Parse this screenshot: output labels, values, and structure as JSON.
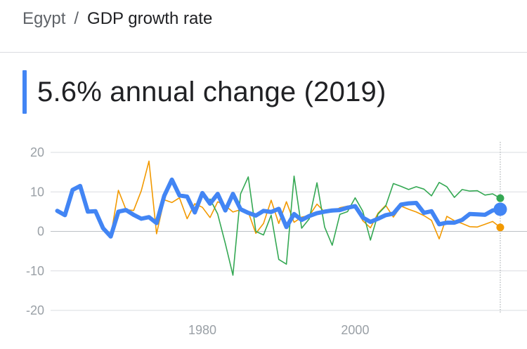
{
  "breadcrumb": {
    "parent": "Egypt",
    "separator": "/",
    "current": "GDP growth rate"
  },
  "headline": {
    "value": "5.6% annual change (2019)"
  },
  "colors": {
    "accent": "#4285f4",
    "series_main": "#4285f4",
    "series_orange": "#f29900",
    "series_green": "#34a853",
    "grid": "#dadce0",
    "axis_text": "#9aa0a6"
  },
  "chart_data": {
    "type": "line",
    "title": "",
    "xlabel": "",
    "ylabel": "",
    "xlim": [
      1953.5,
      2022.5
    ],
    "ylim": [
      -20,
      20
    ],
    "yticks": [
      "20",
      "10",
      "0",
      "-10",
      "-20"
    ],
    "ytick_values": [
      20,
      10,
      0,
      -10,
      -20
    ],
    "xticks": [
      "1980",
      "2000"
    ],
    "xtick_values": [
      1980,
      2000
    ],
    "grid": true,
    "legend": "none",
    "cursor_year": 2019,
    "series": [
      {
        "color": "#4285f4",
        "emphasis": true,
        "x": [
          1961,
          1962,
          1963,
          1964,
          1965,
          1966,
          1967,
          1968,
          1969,
          1970,
          1971,
          1972,
          1973,
          1974,
          1975,
          1976,
          1977,
          1978,
          1979,
          1980,
          1981,
          1982,
          1983,
          1984,
          1985,
          1986,
          1987,
          1988,
          1989,
          1990,
          1991,
          1992,
          1993,
          1994,
          1995,
          1996,
          1997,
          1998,
          1999,
          2000,
          2001,
          2002,
          2003,
          2004,
          2005,
          2006,
          2007,
          2008,
          2009,
          2010,
          2011,
          2012,
          2013,
          2014,
          2015,
          2016,
          2017,
          2018,
          2019
        ],
        "values": [
          5.2,
          4.1,
          10.5,
          11.5,
          5.0,
          5.1,
          0.8,
          -1.3,
          5.0,
          5.4,
          4.2,
          3.2,
          3.6,
          2.1,
          9.0,
          13.1,
          9.1,
          8.8,
          4.8,
          9.7,
          7.0,
          9.5,
          5.3,
          9.5,
          5.6,
          4.7,
          4.0,
          5.2,
          4.9,
          5.7,
          1.1,
          4.4,
          2.9,
          3.9,
          4.6,
          5.0,
          5.3,
          5.4,
          6.0,
          6.4,
          3.5,
          2.4,
          3.2,
          4.1,
          4.5,
          6.8,
          7.1,
          7.2,
          4.7,
          5.1,
          1.8,
          2.2,
          2.2,
          2.9,
          4.4,
          4.3,
          4.2,
          5.3,
          5.6
        ]
      },
      {
        "color": "#f29900",
        "emphasis": false,
        "x": [
          1961,
          1962,
          1963,
          1964,
          1965,
          1966,
          1967,
          1968,
          1969,
          1970,
          1971,
          1972,
          1973,
          1974,
          1975,
          1976,
          1977,
          1978,
          1979,
          1980,
          1981,
          1982,
          1983,
          1984,
          1985,
          1986,
          1987,
          1988,
          1989,
          1990,
          1991,
          1992,
          1993,
          1994,
          1995,
          1996,
          1997,
          1998,
          1999,
          2000,
          2001,
          2002,
          2003,
          2004,
          2005,
          2006,
          2007,
          2008,
          2009,
          2010,
          2011,
          2012,
          2013,
          2014,
          2015,
          2016,
          2017,
          2018,
          2019
        ],
        "values": [
          5.2,
          4.1,
          10.5,
          11.5,
          5.0,
          5.1,
          0.8,
          -1.3,
          10.4,
          5.5,
          5.3,
          10.3,
          17.8,
          -0.6,
          8.0,
          7.3,
          8.5,
          3.2,
          7.0,
          6.1,
          3.5,
          7.5,
          6.5,
          4.9,
          5.5,
          4.9,
          -0.5,
          2.0,
          7.9,
          2.0,
          7.5,
          2.3,
          3.6,
          4.0,
          6.9,
          4.9,
          4.9,
          6.0,
          6.4,
          6.2,
          2.7,
          0.9,
          4.6,
          6.6,
          3.6,
          6.4,
          5.6,
          4.9,
          4.0,
          2.8,
          -1.9,
          3.8,
          2.7,
          2.0,
          1.2,
          1.1,
          1.8,
          2.5,
          1.0
        ]
      },
      {
        "color": "#34a853",
        "emphasis": false,
        "x": [
          1981,
          1982,
          1983,
          1984,
          1985,
          1986,
          1987,
          1988,
          1989,
          1990,
          1991,
          1992,
          1993,
          1994,
          1995,
          1996,
          1997,
          1998,
          1999,
          2000,
          2001,
          2002,
          2003,
          2004,
          2005,
          2006,
          2007,
          2008,
          2009,
          2010,
          2011,
          2012,
          2013,
          2014,
          2015,
          2016,
          2017,
          2018,
          2019
        ],
        "values": [
          8.2,
          4.4,
          -3.1,
          -11.1,
          9.5,
          13.8,
          0.0,
          -0.9,
          4.1,
          -7.1,
          -8.3,
          14.0,
          0.8,
          3.2,
          12.3,
          1.1,
          -3.5,
          4.3,
          5.0,
          8.5,
          5.1,
          -2.2,
          4.4,
          6.4,
          12.1,
          11.4,
          10.6,
          11.3,
          10.7,
          9.0,
          12.4,
          11.3,
          8.6,
          10.6,
          10.2,
          10.3,
          9.2,
          9.5,
          8.4
        ]
      }
    ]
  }
}
